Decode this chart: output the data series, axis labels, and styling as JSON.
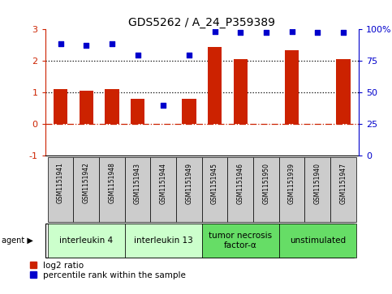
{
  "title": "GDS5262 / A_24_P359389",
  "samples": [
    "GSM1151941",
    "GSM1151942",
    "GSM1151948",
    "GSM1151943",
    "GSM1151944",
    "GSM1151949",
    "GSM1151945",
    "GSM1151946",
    "GSM1151950",
    "GSM1151939",
    "GSM1151940",
    "GSM1151947"
  ],
  "log2_ratio": [
    1.1,
    1.05,
    1.1,
    0.8,
    0.02,
    0.8,
    2.45,
    2.07,
    0.0,
    2.35,
    0.0,
    2.07
  ],
  "percentile": [
    2.55,
    2.5,
    2.55,
    2.18,
    0.6,
    2.18,
    2.92,
    2.9,
    2.9,
    2.92,
    2.9,
    2.9
  ],
  "agents": [
    {
      "label": "interleukin 4",
      "start": 0,
      "end": 3,
      "color": "#ccffcc"
    },
    {
      "label": "interleukin 13",
      "start": 3,
      "end": 6,
      "color": "#ccffcc"
    },
    {
      "label": "tumor necrosis\nfactor-α",
      "start": 6,
      "end": 9,
      "color": "#66dd66"
    },
    {
      "label": "unstimulated",
      "start": 9,
      "end": 12,
      "color": "#66dd66"
    }
  ],
  "bar_color": "#cc2200",
  "dot_color": "#0000cc",
  "ylim_left": [
    -1,
    3
  ],
  "ylim_right": [
    0,
    100
  ],
  "yticks_left": [
    -1,
    0,
    1,
    2,
    3
  ],
  "yticks_right": [
    0,
    25,
    50,
    75,
    100
  ],
  "hline_dotted": [
    1.0,
    2.0
  ],
  "hline_dashed": 0.0,
  "legend_items": [
    "log2 ratio",
    "percentile rank within the sample"
  ],
  "sample_box_color": "#cccccc",
  "agent_label_fontsize": 7.5,
  "title_fontsize": 10,
  "sample_fontsize": 5.5,
  "legend_fontsize": 7.5
}
